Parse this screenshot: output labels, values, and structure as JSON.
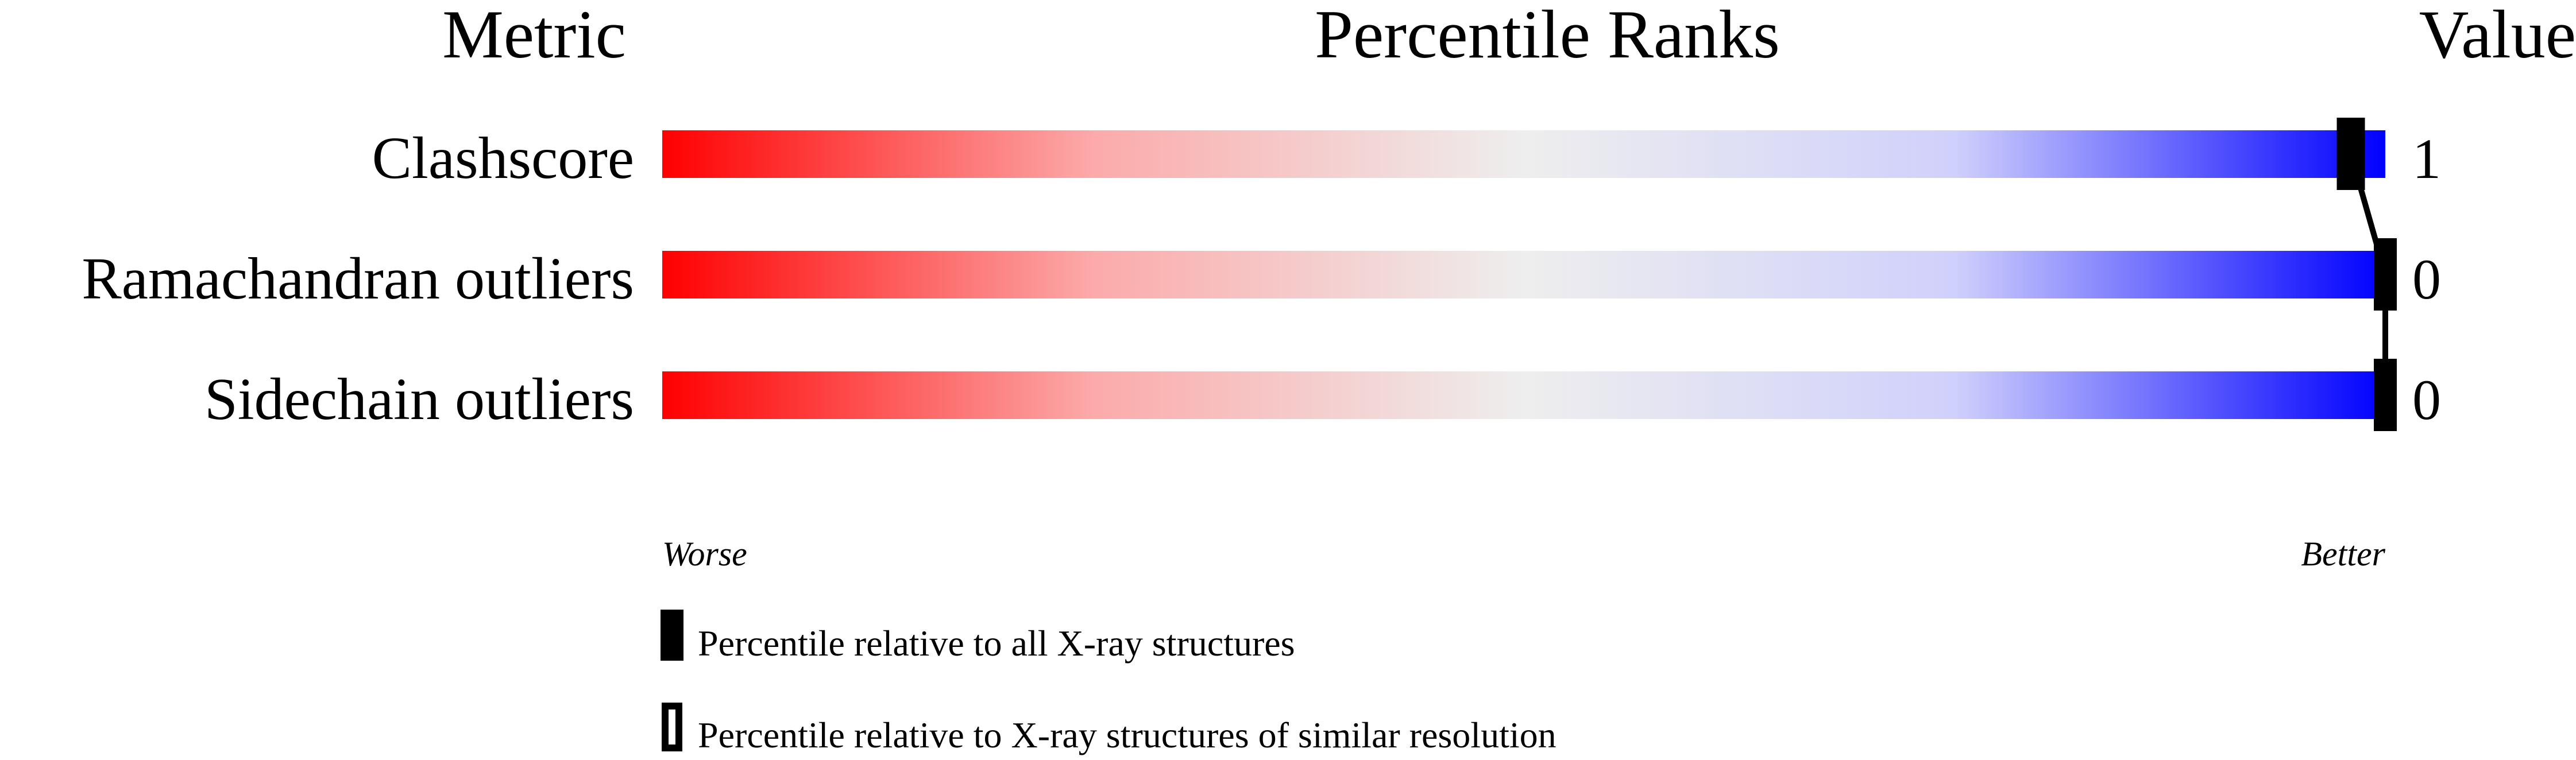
{
  "chart_data": {
    "type": "bar",
    "title": "Percentile Ranks",
    "column_headers": {
      "metric": "Metric",
      "ranks": "Percentile Ranks",
      "value": "Value"
    },
    "categories": [
      "Clashscore",
      "Ramachandran outliers",
      "Sidechain outliers"
    ],
    "values": [
      "1",
      "0",
      "0"
    ],
    "percentiles": [
      98,
      100,
      100
    ],
    "xlim": [
      0,
      100
    ],
    "axis_labels": {
      "worse": "Worse",
      "better": "Better"
    },
    "gradient_colors": [
      "#ff0000",
      "#eeeeee",
      "#0000ff"
    ],
    "marker_color": "#000000",
    "legend": [
      {
        "style": "filled",
        "label": "Percentile relative to all X-ray structures"
      },
      {
        "style": "outline",
        "label": "Percentile relative to X-ray structures of similar resolution"
      }
    ]
  }
}
